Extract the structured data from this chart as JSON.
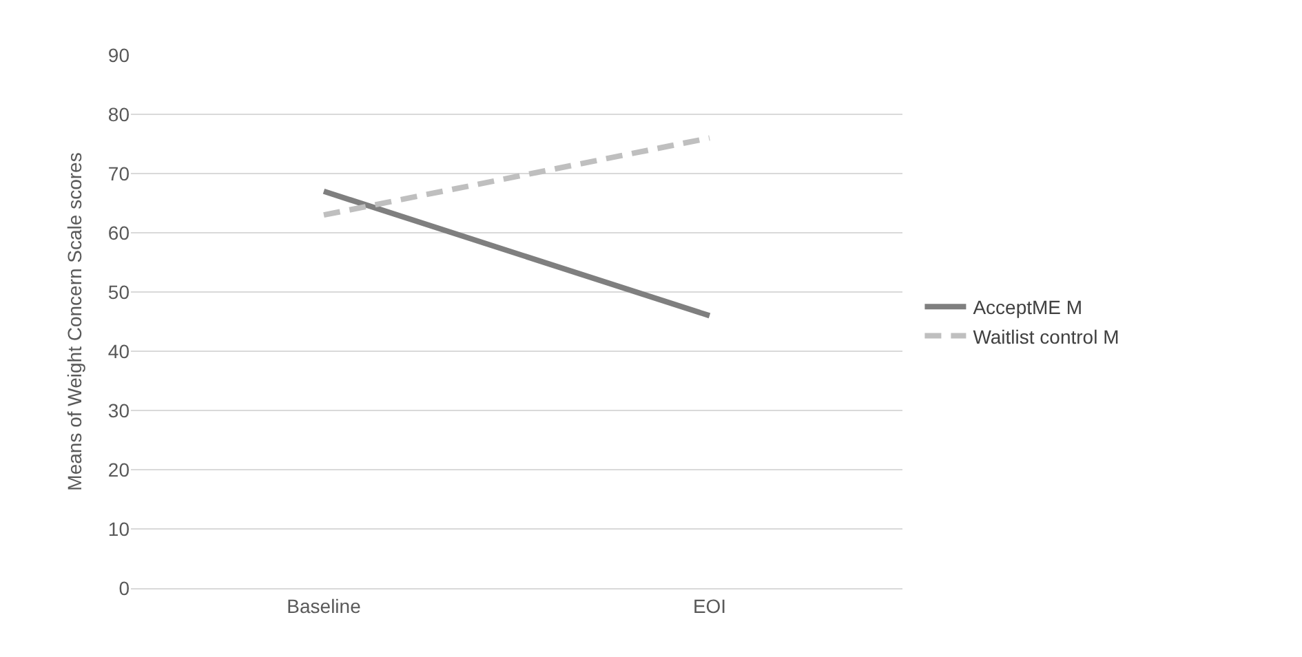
{
  "chart_data": {
    "type": "line",
    "ylabel": "Means of Weight Concern Scale scores",
    "categories": [
      "Baseline",
      "EOI"
    ],
    "series": [
      {
        "name": "AcceptME M",
        "color": "#7f7f7f",
        "values": [
          67,
          46
        ],
        "line_style": "solid"
      },
      {
        "name": "Waitlist control M",
        "color": "#bfbfbf",
        "values": [
          63,
          76
        ],
        "line_style": "dashed"
      }
    ],
    "ylim": [
      0,
      90
    ],
    "yticks": [
      0,
      10,
      20,
      30,
      40,
      50,
      60,
      70,
      80,
      90
    ],
    "grid": "y",
    "legend": "right",
    "marker": "none"
  }
}
